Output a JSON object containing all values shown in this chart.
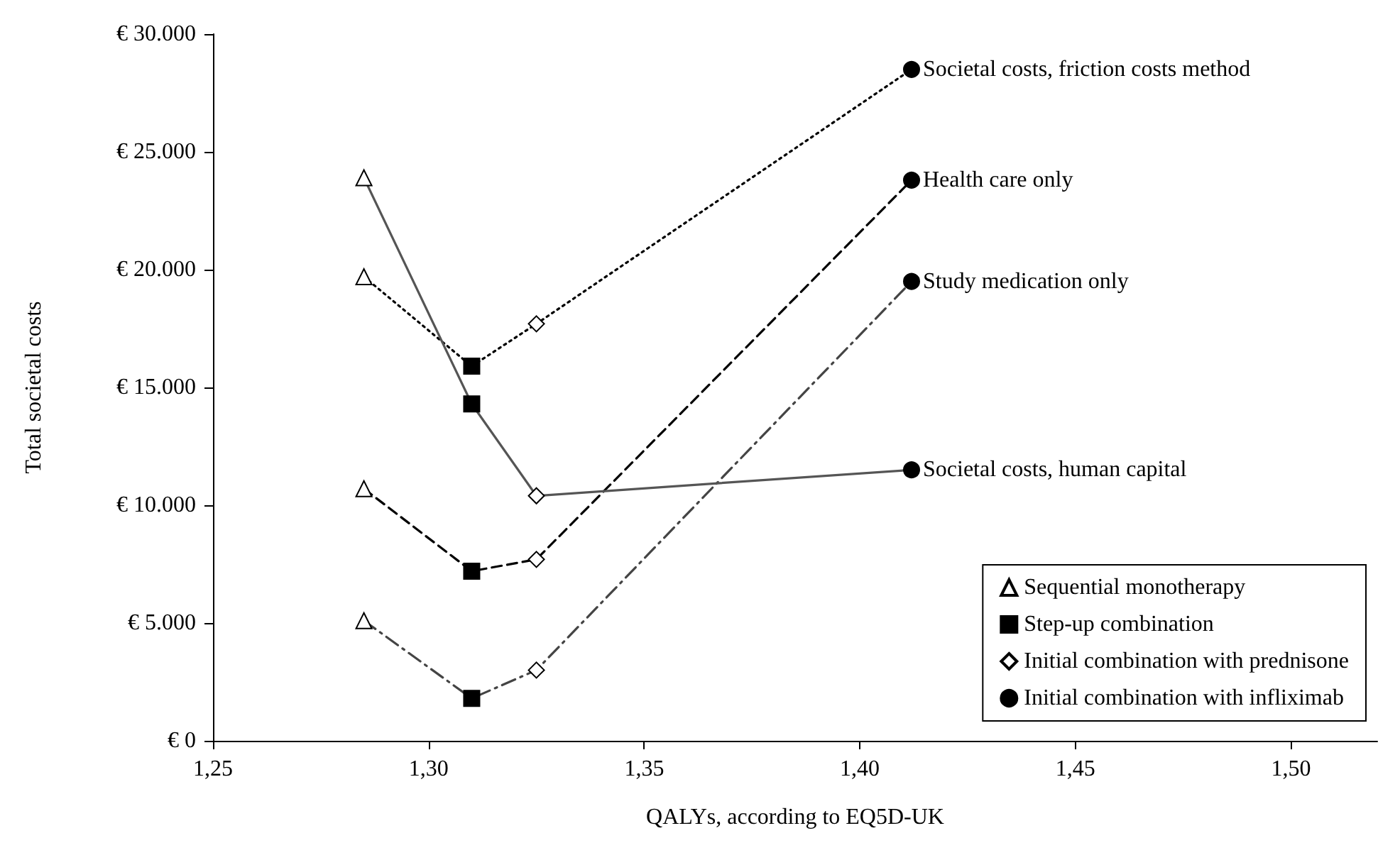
{
  "chart_data": {
    "type": "line",
    "xlabel": "QALYs, according to EQ5D-UK",
    "ylabel": "Total societal costs",
    "xlim": [
      1.25,
      1.52
    ],
    "xticks": [
      {
        "value": 1.25,
        "label": "1,25"
      },
      {
        "value": 1.3,
        "label": "1,30"
      },
      {
        "value": 1.35,
        "label": "1,35"
      },
      {
        "value": 1.4,
        "label": "1,40"
      },
      {
        "value": 1.45,
        "label": "1,45"
      },
      {
        "value": 1.5,
        "label": "1,50"
      }
    ],
    "ylim": [
      0,
      30000
    ],
    "yticks": [
      {
        "value": 0,
        "label": "€ 0"
      },
      {
        "value": 5000,
        "label": "€ 5.000"
      },
      {
        "value": 10000,
        "label": "€ 10.000"
      },
      {
        "value": 15000,
        "label": "€ 15.000"
      },
      {
        "value": 20000,
        "label": "€ 20.000"
      },
      {
        "value": 25000,
        "label": "€ 25.000"
      },
      {
        "value": 30000,
        "label": "€ 30.000"
      }
    ],
    "grid": false,
    "legend": "bottom right",
    "series": [
      {
        "name": "Societal costs, friction costs method",
        "color": "#000000",
        "line_style": "dotted",
        "marker": "none",
        "x": [
          1.285,
          1.31,
          1.325,
          1.412
        ],
        "values": [
          19700,
          15900,
          17700,
          28500
        ]
      },
      {
        "name": "Health care only",
        "color": "#000000",
        "line_style": "dashed",
        "marker": "none",
        "x": [
          1.285,
          1.31,
          1.325,
          1.412
        ],
        "values": [
          10700,
          7200,
          7700,
          23800
        ]
      },
      {
        "name": "Study medication only",
        "color": "#444444",
        "line_style": "dashdot",
        "marker": "none",
        "x": [
          1.285,
          1.31,
          1.325,
          1.412
        ],
        "values": [
          5100,
          1800,
          3000,
          19500
        ]
      },
      {
        "name": "Societal costs, human capital",
        "color": "#555555",
        "line_style": "solid",
        "marker": "none",
        "x": [
          1.285,
          1.31,
          1.325,
          1.412
        ],
        "values": [
          23900,
          14300,
          10400,
          11500
        ]
      },
      {
        "name": "Sequential monotherapy",
        "type": "scatter",
        "color": "#ffffff",
        "marker": "triangle",
        "x": [
          1.285,
          1.285,
          1.285,
          1.285
        ],
        "values": [
          19700,
          10700,
          5100,
          23900
        ]
      },
      {
        "name": "Step-up combination",
        "type": "scatter",
        "color": "#000000",
        "marker": "square",
        "x": [
          1.31,
          1.31,
          1.31,
          1.31
        ],
        "values": [
          15900,
          7200,
          1800,
          14300
        ]
      },
      {
        "name": "Initial combination with prednisone",
        "type": "scatter",
        "color": "#ffffff",
        "marker": "diamond",
        "x": [
          1.325,
          1.325,
          1.325,
          1.325
        ],
        "values": [
          17700,
          7700,
          3000,
          10400
        ]
      },
      {
        "name": "Initial combination with infliximab",
        "type": "scatter",
        "color": "#000000",
        "marker": "circle",
        "x": [
          1.412,
          1.412,
          1.412,
          1.412
        ],
        "values": [
          28500,
          23800,
          19500,
          11500
        ]
      }
    ]
  }
}
